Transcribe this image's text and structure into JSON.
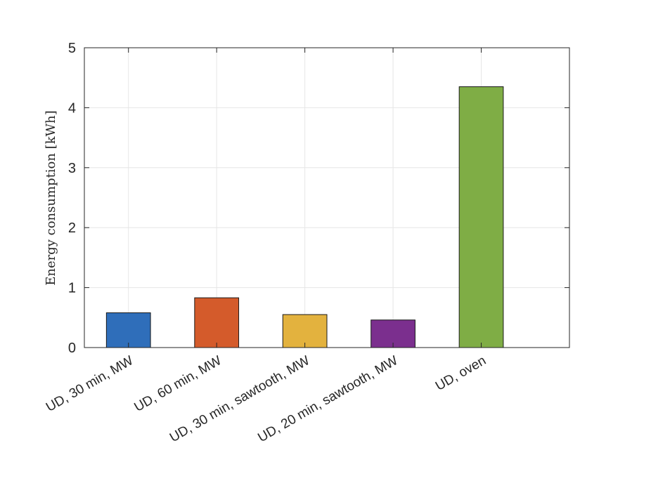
{
  "chart_data": {
    "type": "bar",
    "categories": [
      "UD, 30 min, MW",
      "UD, 60 min, MW",
      "UD, 30 min, sawtooth, MW",
      "UD, 20 min, sawtooth, MW",
      "UD, oven"
    ],
    "values": [
      0.58,
      0.83,
      0.55,
      0.46,
      4.35
    ],
    "colors": [
      "#2F6EBA",
      "#D45B2B",
      "#E3B23E",
      "#7B2F8E",
      "#7FAD45"
    ],
    "title": "",
    "xlabel": "",
    "ylabel": "Energy consumption [kWh]",
    "ylim": [
      0,
      5
    ],
    "yticks": [
      0,
      1,
      2,
      3,
      4,
      5
    ],
    "grid": true,
    "legend": "none"
  }
}
